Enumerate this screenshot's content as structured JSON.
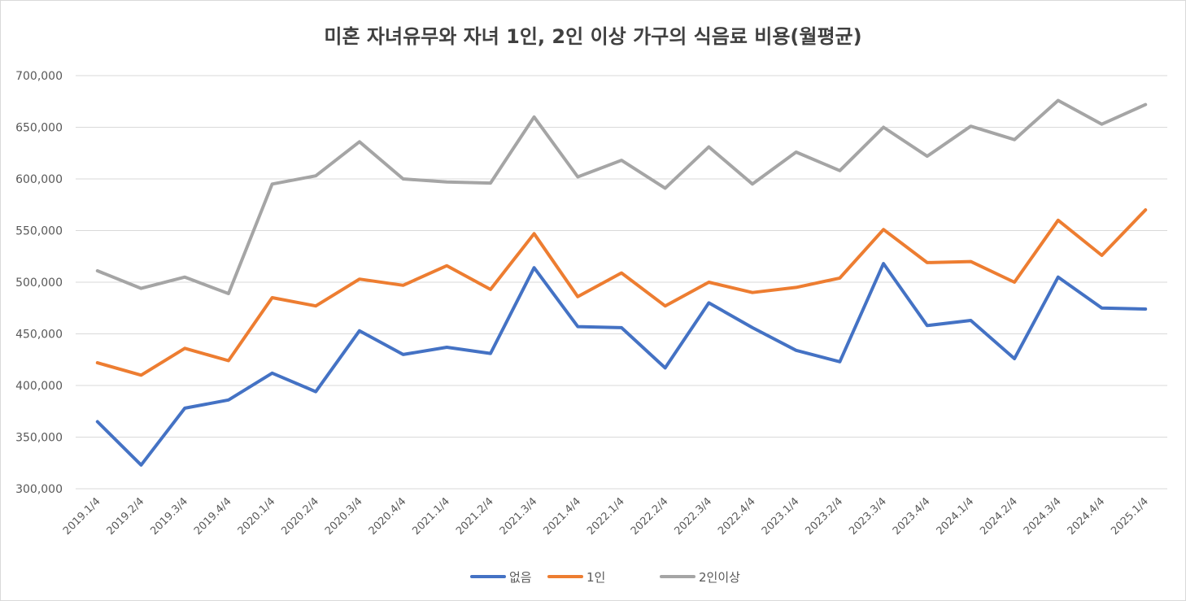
{
  "chart_data": {
    "type": "line",
    "title": "미혼 자녀유무와 자녀 1인, 2인 이상 가구의 식음료 비용(월평균)",
    "xlabel": "",
    "ylabel": "",
    "ylim": [
      300000,
      700000
    ],
    "yticks": [
      "300,000",
      "350,000",
      "400,000",
      "450,000",
      "500,000",
      "550,000",
      "600,000",
      "650,000",
      "700,000"
    ],
    "grid": true,
    "legend_position": "bottom",
    "categories": [
      "2019.1/4",
      "2019.2/4",
      "2019.3/4",
      "2019.4/4",
      "2020.1/4",
      "2020.2/4",
      "2020.3/4",
      "2020.4/4",
      "2021.1/4",
      "2021.2/4",
      "2021.3/4",
      "2021.4/4",
      "2022.1/4",
      "2022.2/4",
      "2022.3/4",
      "2022.4/4",
      "2023.1/4",
      "2023.2/4",
      "2023.3/4",
      "2023.4/4",
      "2024.1/4",
      "2024.2/4",
      "2024.3/4",
      "2024.4/4",
      "2025.1/4"
    ],
    "series": [
      {
        "name": "없음",
        "color": "#4472C4",
        "values": [
          365000,
          323000,
          378000,
          386000,
          412000,
          394000,
          453000,
          430000,
          437000,
          431000,
          514000,
          457000,
          456000,
          417000,
          480000,
          456000,
          434000,
          423000,
          518000,
          458000,
          463000,
          426000,
          505000,
          475000,
          474000
        ]
      },
      {
        "name": "1인",
        "color": "#ED7D31",
        "values": [
          422000,
          410000,
          436000,
          424000,
          485000,
          477000,
          503000,
          497000,
          516000,
          493000,
          547000,
          486000,
          509000,
          477000,
          500000,
          490000,
          495000,
          504000,
          551000,
          519000,
          520000,
          500000,
          560000,
          526000,
          570000
        ]
      },
      {
        "name": "2인이상",
        "color": "#A5A5A5",
        "values": [
          511000,
          494000,
          505000,
          489000,
          595000,
          603000,
          636000,
          600000,
          597000,
          596000,
          660000,
          602000,
          618000,
          591000,
          631000,
          595000,
          626000,
          608000,
          650000,
          622000,
          651000,
          638000,
          676000,
          653000,
          672000
        ]
      }
    ]
  }
}
